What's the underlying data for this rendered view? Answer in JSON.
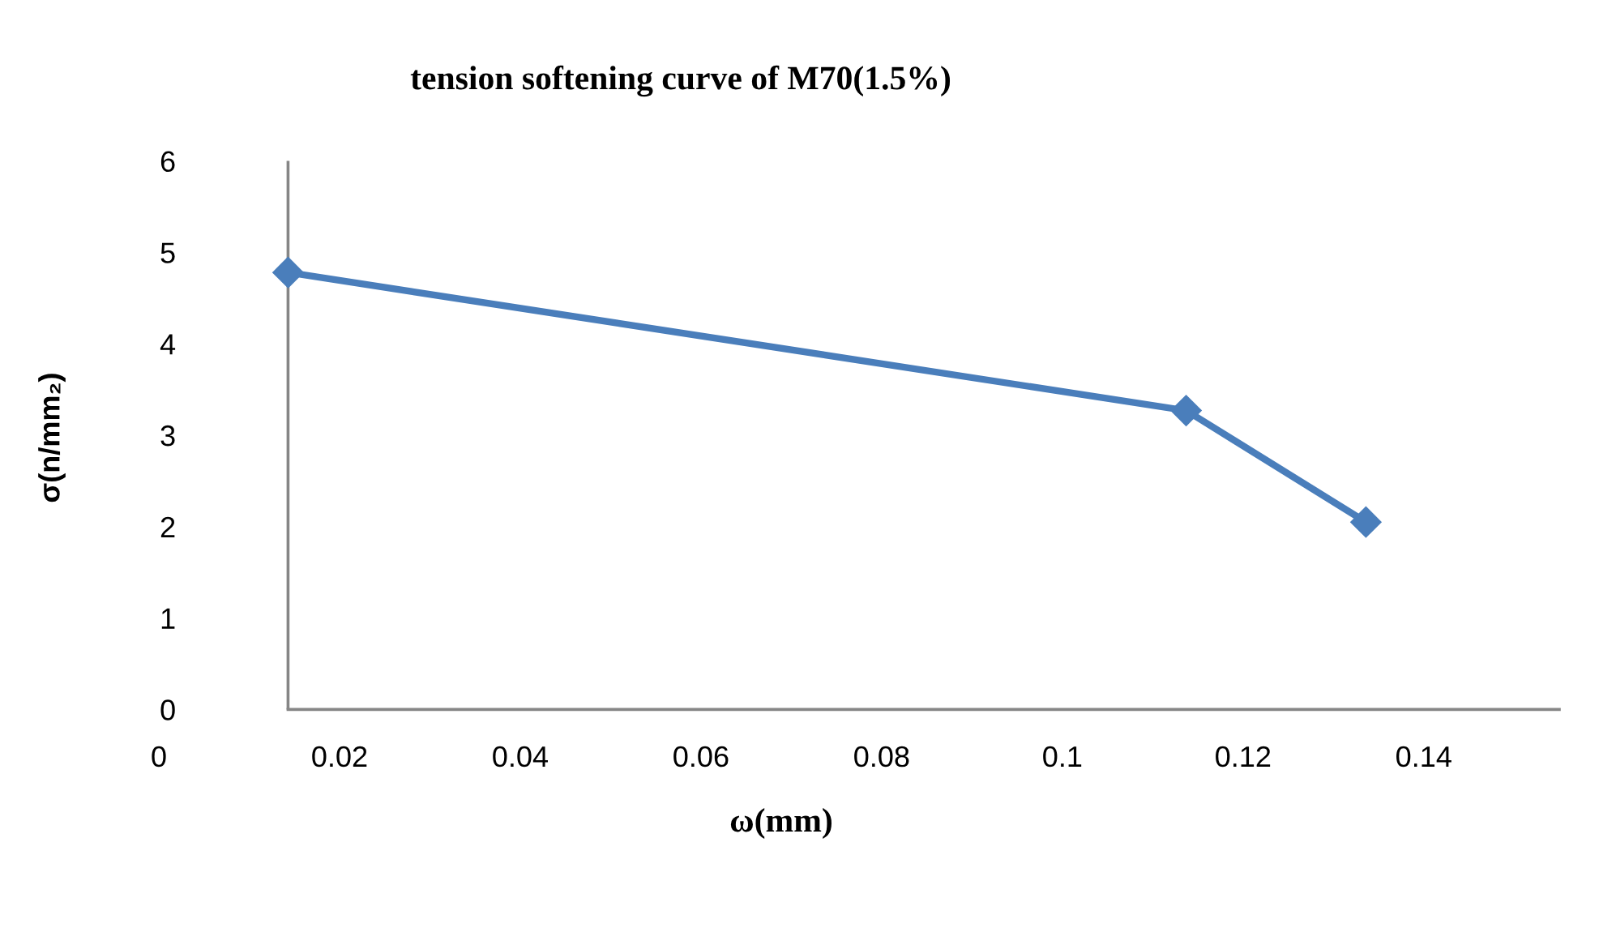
{
  "chart_data": {
    "type": "line",
    "title": "tension softening curve of M70(1.5%)",
    "xlabel": "ω(mm)",
    "ylabel": "σ(n/mm₂)",
    "x": [
      0.0143,
      0.1137,
      0.1336
    ],
    "series": [
      {
        "color": "#4a7ebb",
        "values": [
          4.78,
          3.27,
          2.05
        ]
      }
    ],
    "xlim": [
      0,
      0.155
    ],
    "xticks": [
      0,
      0.02,
      0.04,
      0.06,
      0.08,
      0.1,
      0.12,
      0.14
    ],
    "ylim": [
      0,
      6
    ],
    "yticks": [
      0,
      1,
      2,
      3,
      4,
      5,
      6
    ],
    "ref_lines": [
      {
        "axis": "x",
        "value": 0.0143,
        "color": "#868686",
        "line_style": "solid"
      }
    ],
    "marker": "diamond",
    "line_style": "solid",
    "grid": false,
    "legend": false
  }
}
